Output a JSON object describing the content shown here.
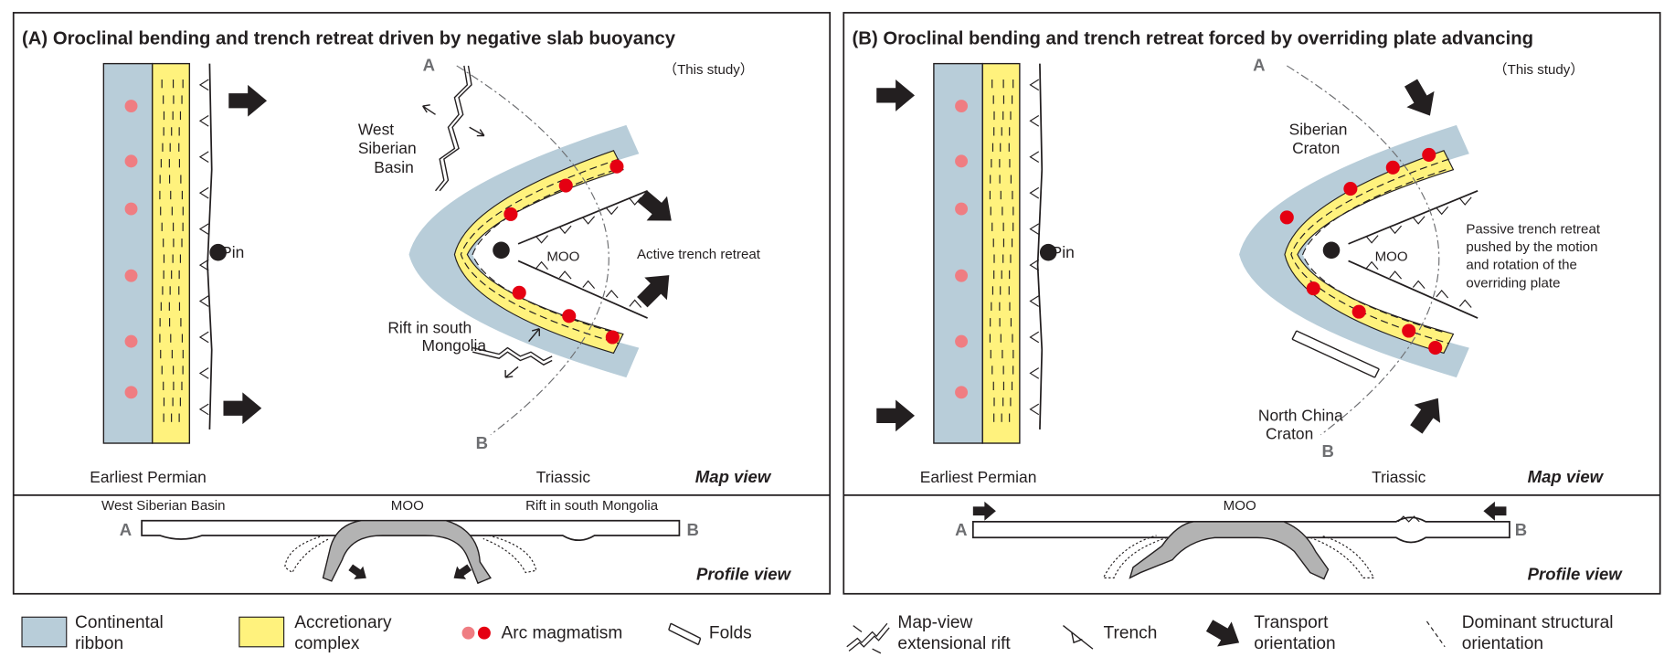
{
  "colors": {
    "ribbon": "#b8cdd9",
    "accretion": "#fff27d",
    "arc_pink": "#ef7d82",
    "arc_red": "#e50012",
    "slab": "#b3b3b3",
    "ink": "#231f20"
  },
  "panelA": {
    "title": "(A) Oroclinal bending and trench retreat driven by negative slab buoyancy",
    "study": "（This study）",
    "pin": "Pin",
    "earliest": "Earliest Permian",
    "triassic": "Triassic",
    "map_view": "Map view",
    "profile_view": "Profile view",
    "moo": "MOO",
    "label_a": "A",
    "label_b": "B",
    "wsb": [
      "West",
      "Siberian",
      "Basin"
    ],
    "rift": [
      "Rift in south",
      "Mongolia"
    ],
    "active": "Active trench retreat",
    "profile": {
      "wsb": "West Siberian Basin",
      "moo": "MOO",
      "rift": "Rift in south Mongolia",
      "a": "A",
      "b": "B"
    }
  },
  "panelB": {
    "title": "(B) Oroclinal bending and trench retreat forced by overriding plate advancing",
    "study": "（This study）",
    "pin": "Pin",
    "earliest": "Earliest Permian",
    "triassic": "Triassic",
    "map_view": "Map view",
    "profile_view": "Profile view",
    "moo": "MOO",
    "label_a": "A",
    "label_b": "B",
    "siberian": [
      "Siberian",
      "Craton"
    ],
    "ncc": [
      "North China",
      "Craton"
    ],
    "passive": [
      "Passive trench retreat",
      "pushed by the motion",
      "and rotation of the",
      "overriding plate"
    ],
    "profile": {
      "moo": "MOO",
      "a": "A",
      "b": "B"
    }
  },
  "legend": [
    {
      "icon": "continental-ribbon-swatch",
      "lines": [
        "Continental",
        "ribbon"
      ]
    },
    {
      "icon": "accretionary-complex-swatch",
      "lines": [
        "Accretionary",
        "complex"
      ]
    },
    {
      "icon": "arc-magmatism-dots",
      "lines": [
        "Arc magmatism"
      ]
    },
    {
      "icon": "folds-icon",
      "lines": [
        "Folds"
      ]
    },
    {
      "icon": "extensional-rift-icon",
      "lines": [
        "Map-view",
        "extensional rift"
      ]
    },
    {
      "icon": "trench-icon",
      "lines": [
        "Trench"
      ]
    },
    {
      "icon": "transport-arrow-icon",
      "lines": [
        "Transport",
        "orientation"
      ]
    },
    {
      "icon": "structural-orientation-icon",
      "lines": [
        "Dominant structural",
        "orientation"
      ]
    }
  ]
}
